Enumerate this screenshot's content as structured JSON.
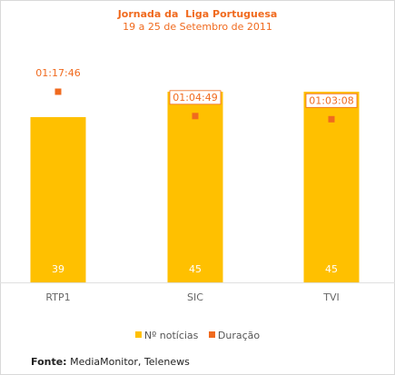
{
  "chart_data": {
    "type": "bar",
    "title": "Jornada da  Liga Portuguesa",
    "subtitle": "19 a 25 de Setembro de 2011",
    "categories": [
      "RTP1",
      "SIC",
      "TVI"
    ],
    "series": [
      {
        "name": "Nº notícias",
        "values": [
          39,
          45,
          45
        ],
        "color": "#ffc000",
        "kind": "bar"
      },
      {
        "name": "Duração",
        "values": [
          "01:17:46",
          "01:04:49",
          "01:03:08"
        ],
        "seconds": [
          4666,
          3889,
          3788
        ],
        "color": "#f06a1e",
        "kind": "point"
      }
    ],
    "ylim_bars": [
      0,
      45
    ],
    "ylim_points_seconds": [
      0,
      4666
    ],
    "legend_position": "bottom",
    "grid": false
  },
  "source": {
    "label": "Fonte:",
    "text": "MediaMonitor, Telenews"
  }
}
